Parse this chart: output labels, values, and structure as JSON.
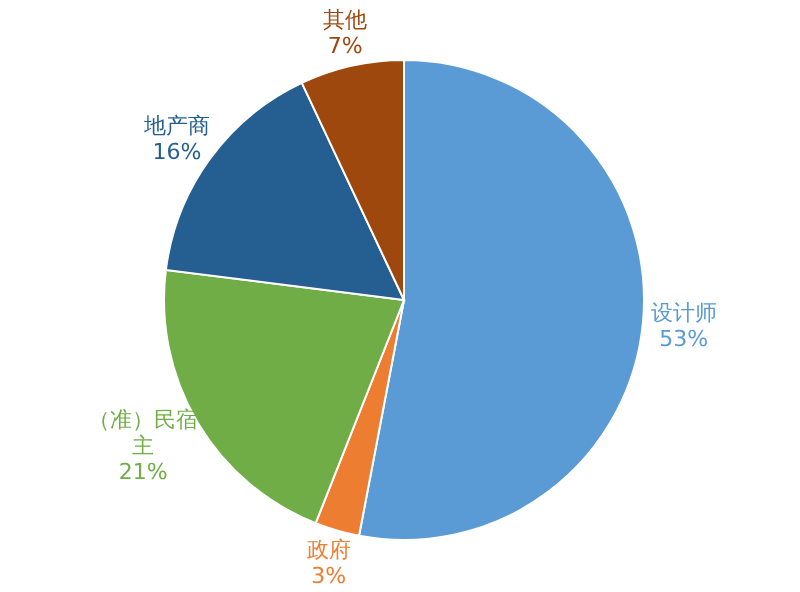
{
  "chart_data": {
    "type": "pie",
    "categories": [
      "设计师",
      "政府",
      "（准）民宿主",
      "地产商",
      "其他"
    ],
    "values": [
      53,
      3,
      21,
      16,
      7
    ],
    "colors": [
      "#5b9bd5",
      "#ed7d31",
      "#70ad47",
      "#255e91",
      "#9e480e"
    ],
    "value_labels": [
      "53%",
      "3%",
      "21%",
      "16%",
      "7%"
    ],
    "legend": false
  }
}
